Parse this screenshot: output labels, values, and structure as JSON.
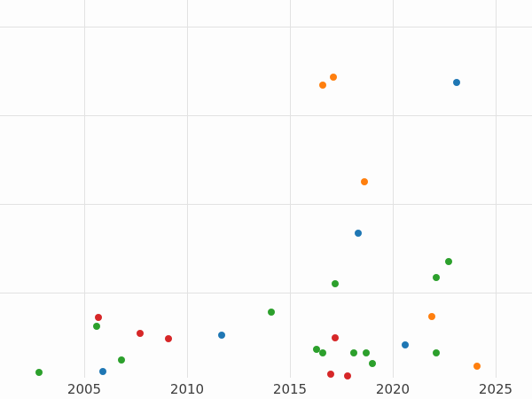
{
  "chart_data": {
    "type": "scatter",
    "title": "",
    "xlabel": "",
    "ylabel": "",
    "grid": true,
    "legend": false,
    "xlim": [
      2000.9,
      2026.8
    ],
    "ylim": [
      -0.05,
      4.2
    ],
    "x_ticks": [
      2005,
      2010,
      2015,
      2020,
      2025
    ],
    "x_tick_labels": [
      "2005",
      "2010",
      "2015",
      "2020",
      "2025"
    ],
    "y_gridline_values": [
      1,
      2,
      3,
      4
    ],
    "point_radius_px": 4,
    "series": [
      {
        "name": "series-blue",
        "color": "#1f77b4",
        "points": [
          {
            "x": 2005.9,
            "y": 0.11
          },
          {
            "x": 2011.7,
            "y": 0.52
          },
          {
            "x": 2018.3,
            "y": 1.67
          },
          {
            "x": 2020.6,
            "y": 0.41
          },
          {
            "x": 2023.1,
            "y": 3.37
          }
        ]
      },
      {
        "name": "series-orange",
        "color": "#ff7f0e",
        "points": [
          {
            "x": 2016.6,
            "y": 3.34
          },
          {
            "x": 2017.1,
            "y": 3.43
          },
          {
            "x": 2018.6,
            "y": 2.25
          },
          {
            "x": 2021.9,
            "y": 0.73
          },
          {
            "x": 2024.1,
            "y": 0.17
          }
        ]
      },
      {
        "name": "series-green",
        "color": "#2ca02c",
        "points": [
          {
            "x": 2002.8,
            "y": 0.1
          },
          {
            "x": 2005.6,
            "y": 0.62
          },
          {
            "x": 2006.8,
            "y": 0.24
          },
          {
            "x": 2014.1,
            "y": 0.78
          },
          {
            "x": 2016.3,
            "y": 0.36
          },
          {
            "x": 2016.6,
            "y": 0.32
          },
          {
            "x": 2017.2,
            "y": 1.1
          },
          {
            "x": 2018.1,
            "y": 0.32
          },
          {
            "x": 2018.7,
            "y": 0.32
          },
          {
            "x": 2019.0,
            "y": 0.2
          },
          {
            "x": 2022.1,
            "y": 1.17
          },
          {
            "x": 2022.1,
            "y": 0.32
          },
          {
            "x": 2022.7,
            "y": 1.35
          }
        ]
      },
      {
        "name": "series-red",
        "color": "#d62728",
        "points": [
          {
            "x": 2005.7,
            "y": 0.72
          },
          {
            "x": 2007.7,
            "y": 0.54
          },
          {
            "x": 2009.1,
            "y": 0.48
          },
          {
            "x": 2017.0,
            "y": 0.08
          },
          {
            "x": 2017.2,
            "y": 0.49
          },
          {
            "x": 2017.8,
            "y": 0.06
          }
        ]
      }
    ]
  }
}
